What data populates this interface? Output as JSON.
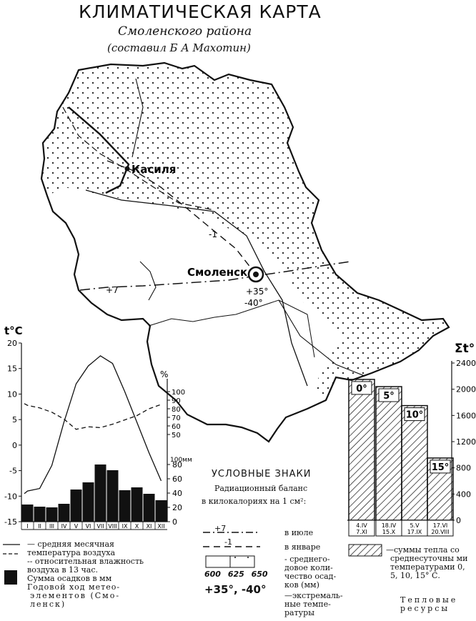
{
  "title": "КЛИМАТИЧЕСКАЯ КАРТА",
  "subtitle": "Смоленского района",
  "author": "(составил Б А Махотин)",
  "cities": [
    {
      "name": "Касиля"
    },
    {
      "name": "Смоленск"
    }
  ],
  "map_labels": {
    "july_isotherm": "+7",
    "january_isotherm": "-1",
    "extreme_max": "+35°",
    "extreme_min": "-40°"
  },
  "climate_chart": {
    "temp_axis_title": "t°C",
    "temp_ticks": [
      "20",
      "15",
      "10",
      "5",
      "0",
      "-5",
      "-10",
      "-15"
    ],
    "humidity_unit": "%",
    "humidity_ticks": [
      "100",
      "90",
      "80",
      "70",
      "60",
      "50"
    ],
    "precip_unit": "100мм",
    "precip_ticks": [
      "80",
      "60",
      "40",
      "20",
      "0"
    ],
    "months": [
      "I",
      "II",
      "III",
      "IV",
      "V",
      "VI",
      "VII",
      "VIII",
      "IX",
      "X",
      "XI",
      "XII"
    ],
    "temperature_c": [
      -9,
      -8.5,
      -4,
      4.5,
      12,
      15.5,
      17.5,
      16,
      10.5,
      4.5,
      -1.5,
      -7
    ],
    "humidity_pct": [
      84,
      81,
      76,
      68,
      56,
      59,
      58,
      62,
      67,
      72,
      80,
      85
    ],
    "precipitation_mm": [
      24,
      21,
      20,
      25,
      45,
      55,
      80,
      72,
      44,
      48,
      39,
      30
    ]
  },
  "heat_chart": {
    "axis_title": "Σt°",
    "ticks": [
      "2400",
      "2000",
      "1600",
      "1200",
      "800",
      "400",
      "0"
    ],
    "bars": [
      {
        "label": "0°",
        "sum": 2150,
        "dates": "4.IV 7.XI"
      },
      {
        "label": "5°",
        "sum": 2040,
        "dates": "18.IV 15.X"
      },
      {
        "label": "10°",
        "sum": 1750,
        "dates": "5.V 17.IX"
      },
      {
        "label": "15°",
        "sum": 950,
        "dates": "17.VI 20.VIII"
      }
    ]
  },
  "legend_left": {
    "line1": "— средняя месячная",
    "line2": "температура воздуха",
    "line3": "-- относительная влажность",
    "line4": "воздуха в 13 час.",
    "line5": "Сумма осадков в мм",
    "line6": "Годовой ход метео-",
    "line7": "элементов (Смо-",
    "line8": "ленск)"
  },
  "legend_center": {
    "heading": "УСЛОВНЫЕ ЗНАКИ",
    "sub1": "Радиационный баланс",
    "sub2": "в килокалориях на 1 см²:",
    "july_sample": "+7",
    "january_sample": "-1",
    "july": "в июле",
    "january": "в январе",
    "precip_values": [
      "600",
      "625",
      "650"
    ],
    "precip_text": [
      "- среднего-",
      "довое коли-",
      "чество осад-",
      "ков (мм)"
    ],
    "extreme_sample": "+35°, -40°",
    "extreme_text": [
      "—экстремаль-",
      "ные темпе-",
      "ратуры"
    ]
  },
  "legend_right": {
    "text": [
      "—суммы тепла со",
      "среднесуточны ми",
      "температурами 0,",
      "5, 10, 15° С."
    ],
    "caption1": "Тепловые",
    "caption2": "ресурсы"
  }
}
